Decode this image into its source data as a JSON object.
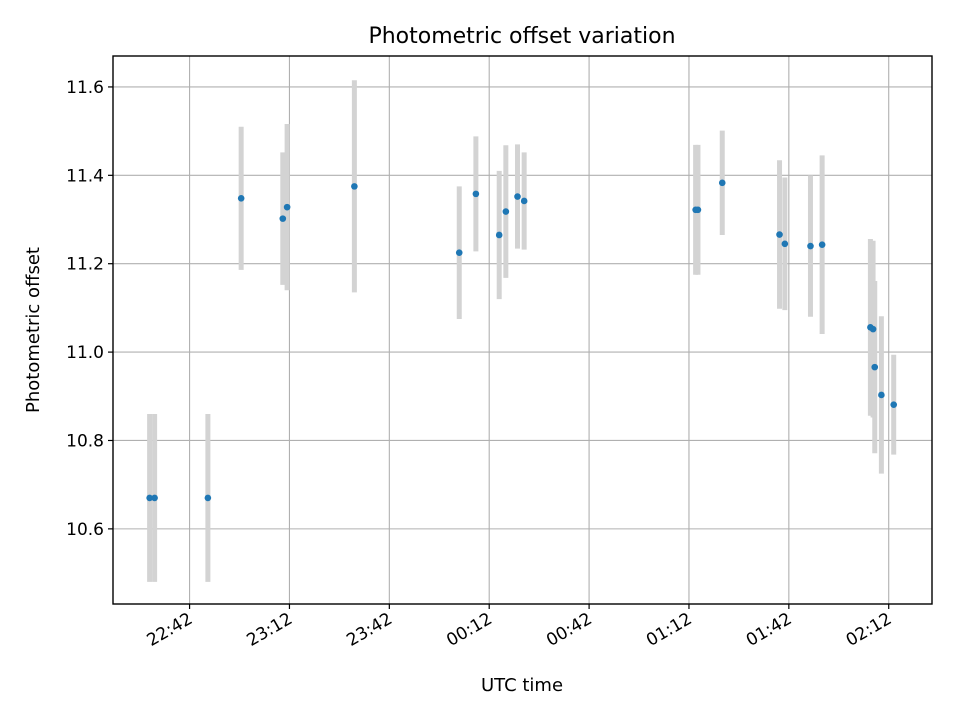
{
  "chart_data": {
    "type": "scatter",
    "title": "Photometric offset variation",
    "xlabel": "UTC time",
    "ylabel": "Photometric offset",
    "x_unit": "minutes relative to 22:42 UTC",
    "xlim": [
      -23,
      223
    ],
    "ylim": [
      10.43,
      11.67
    ],
    "grid": true,
    "marker_color": "#1f77b4",
    "errorbar_color": "#d3d3d3",
    "x_ticks": [
      {
        "value": 0,
        "label": "22:42"
      },
      {
        "value": 30,
        "label": "23:12"
      },
      {
        "value": 60,
        "label": "23:42"
      },
      {
        "value": 90,
        "label": "00:12"
      },
      {
        "value": 120,
        "label": "00:42"
      },
      {
        "value": 150,
        "label": "01:12"
      },
      {
        "value": 180,
        "label": "01:42"
      },
      {
        "value": 210,
        "label": "02:12"
      }
    ],
    "y_ticks": [
      {
        "value": 10.6,
        "label": "10.6"
      },
      {
        "value": 10.8,
        "label": "10.8"
      },
      {
        "value": 11.0,
        "label": "11.0"
      },
      {
        "value": 11.2,
        "label": "11.2"
      },
      {
        "value": 11.4,
        "label": "11.4"
      },
      {
        "value": 11.6,
        "label": "11.6"
      }
    ],
    "points": [
      {
        "t": -12.0,
        "y": 10.67,
        "err": 0.19
      },
      {
        "t": -10.5,
        "y": 10.67,
        "err": 0.19
      },
      {
        "t": 5.5,
        "y": 10.67,
        "err": 0.19
      },
      {
        "t": 15.5,
        "y": 11.348,
        "err": 0.162
      },
      {
        "t": 28.0,
        "y": 11.302,
        "err": 0.15
      },
      {
        "t": 29.3,
        "y": 11.328,
        "err": 0.188
      },
      {
        "t": 49.5,
        "y": 11.375,
        "err": 0.24
      },
      {
        "t": 81.0,
        "y": 11.225,
        "err": 0.15
      },
      {
        "t": 86.0,
        "y": 11.358,
        "err": 0.13
      },
      {
        "t": 93.0,
        "y": 11.265,
        "err": 0.145
      },
      {
        "t": 95.0,
        "y": 11.318,
        "err": 0.15
      },
      {
        "t": 98.5,
        "y": 11.352,
        "err": 0.118
      },
      {
        "t": 100.5,
        "y": 11.342,
        "err": 0.11
      },
      {
        "t": 152.0,
        "y": 11.322,
        "err": 0.147
      },
      {
        "t": 152.7,
        "y": 11.322,
        "err": 0.147
      },
      {
        "t": 160.0,
        "y": 11.383,
        "err": 0.118
      },
      {
        "t": 177.2,
        "y": 11.266,
        "err": 0.168
      },
      {
        "t": 178.8,
        "y": 11.245,
        "err": 0.15
      },
      {
        "t": 186.5,
        "y": 11.24,
        "err": 0.16
      },
      {
        "t": 190.0,
        "y": 11.243,
        "err": 0.202
      },
      {
        "t": 204.5,
        "y": 11.056,
        "err": 0.2
      },
      {
        "t": 205.3,
        "y": 11.052,
        "err": 0.2
      },
      {
        "t": 205.8,
        "y": 10.966,
        "err": 0.195
      },
      {
        "t": 207.8,
        "y": 10.903,
        "err": 0.178
      },
      {
        "t": 211.5,
        "y": 10.881,
        "err": 0.113
      }
    ]
  }
}
